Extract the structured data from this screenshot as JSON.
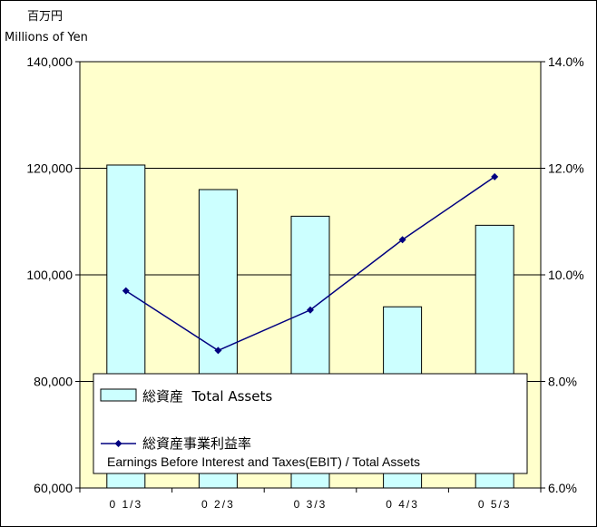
{
  "chart_data": {
    "type": "bar+line",
    "unit_label_jp": "百万円",
    "unit_label_en": "Millions of Yen",
    "categories": [
      "01/3",
      "02/3",
      "03/3",
      "04/3",
      "05/3"
    ],
    "category_display": [
      "0 1/3",
      "0 2/3",
      "0 3/3",
      "0 4/3",
      "0 5/3"
    ],
    "series": [
      {
        "name": "総資産  Total Assets",
        "type": "bar",
        "axis": "left",
        "color": "#ccffff",
        "values": [
          120600,
          116000,
          111000,
          94000,
          109300
        ]
      },
      {
        "name": "総資産事業利益率",
        "name_en": "Earnings Before Interest and Taxes(EBIT) / Total Assets",
        "type": "line",
        "axis": "right",
        "color": "#000080",
        "values": [
          9.7,
          8.58,
          9.34,
          10.66,
          11.84
        ]
      }
    ],
    "y_left": {
      "min": 60000,
      "max": 140000,
      "ticks": [
        "60,000",
        "80,000",
        "100,000",
        "120,000",
        "140,000"
      ],
      "tick_values": [
        60000,
        80000,
        100000,
        120000,
        140000
      ]
    },
    "y_right": {
      "min": 6.0,
      "max": 14.0,
      "ticks": [
        "6.0%",
        "8.0%",
        "10.0%",
        "12.0%",
        "14.0%"
      ],
      "tick_values": [
        6,
        8,
        10,
        12,
        14
      ]
    },
    "plot_background": "#ffffcc",
    "grid": true,
    "legend_position": "bottom-inside"
  }
}
